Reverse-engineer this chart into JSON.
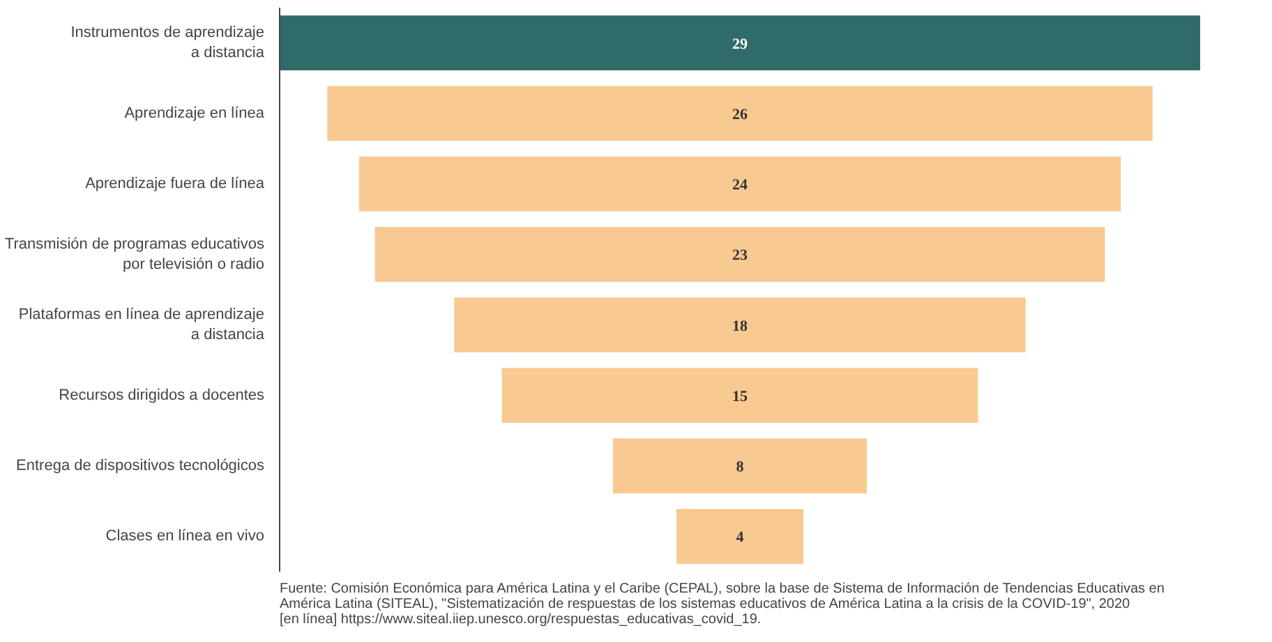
{
  "chart_data": {
    "type": "other",
    "categories": [
      "Instrumentos de aprendizaje\na distancia",
      "Aprendizaje en línea",
      "Aprendizaje fuera de línea",
      "Transmisión de programas educativos\npor televisión o radio",
      "Plataformas en línea de aprendizaje\na distancia",
      "Recursos dirigidos a docentes",
      "Entrega de dispositivos tecnológicos",
      "Clases en línea en vivo"
    ],
    "values": [
      29,
      26,
      24,
      23,
      18,
      15,
      8,
      4
    ],
    "colors": [
      "#2f6b68",
      "#f9c992",
      "#f9c992",
      "#f9c992",
      "#f9c992",
      "#f9c992",
      "#f9c992",
      "#f9c992"
    ],
    "data_labels": true,
    "annotations": [
      "Fuente: Comisión Económica para América Latina y el Caribe (CEPAL), sobre la base de Sistema de Información de Tendencias Educativas en\n             América Latina (SITEAL), \"Sistematización de respuestas de los sistemas educativos de América Latina a la crisis de la COVID-19\", 2020\n             [en línea] https://www.siteal.iiep.unesco.org/respuestas_educativas_covid_19."
    ]
  }
}
